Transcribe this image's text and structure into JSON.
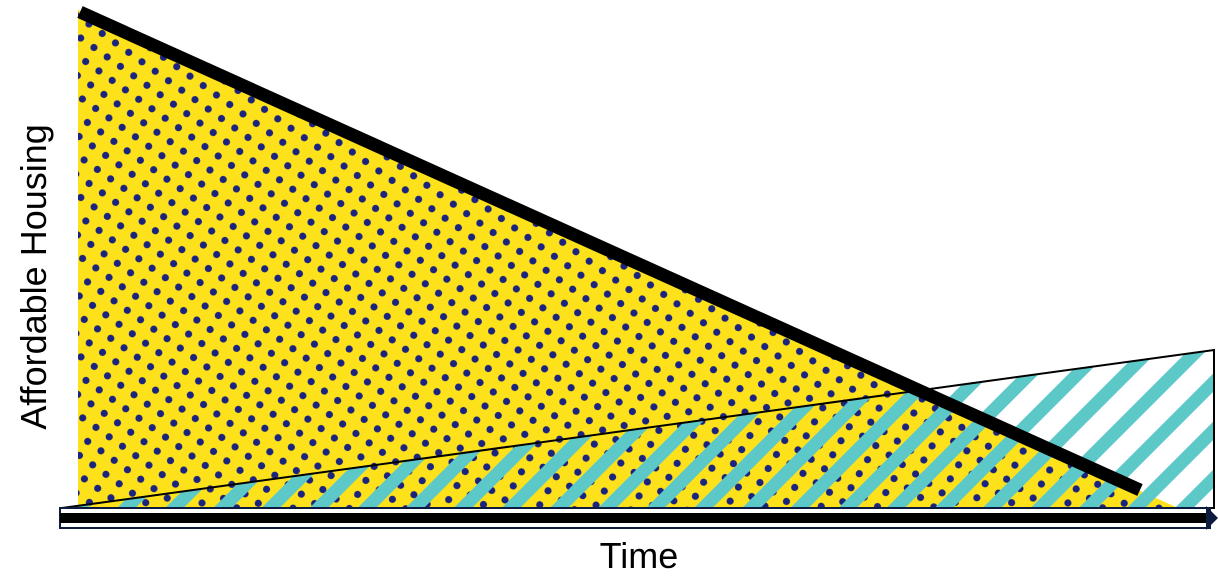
{
  "diagram": {
    "y_axis_label": "Affordable Housing",
    "x_axis_label": "Time",
    "colors": {
      "declining_fill": "#fde11b",
      "dot_color": "#1a237e",
      "stripe_color": "#5cc8c8",
      "axis_fill": "#0d1b3e",
      "line_color": "#000000",
      "background": "#ffffff"
    },
    "patterns": {
      "declining_area": "dots",
      "growing_area": "diagonal-stripes"
    }
  }
}
